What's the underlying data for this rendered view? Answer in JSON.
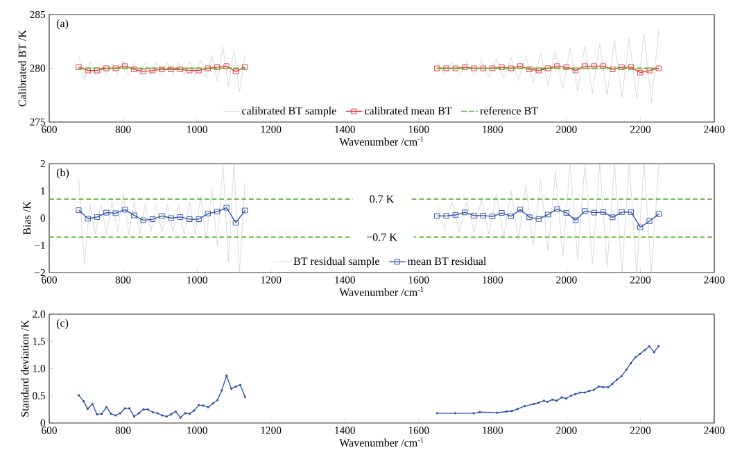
{
  "chart_data": [
    {
      "type": "line",
      "annotations": [
        "(a)"
      ],
      "xlabel": "Wavenumber /cm$^{-1}$",
      "ylabel": "Calibrated BT /K",
      "xlim": [
        600,
        2400
      ],
      "ylim": [
        275,
        285
      ],
      "xticks": [
        600,
        800,
        1000,
        1200,
        1400,
        1600,
        1800,
        2000,
        2200,
        2400
      ],
      "yticks": [
        275,
        280,
        285
      ],
      "legend": "bottom",
      "series": [
        {
          "name": "calibrated BT sample",
          "color": "#c8c8c8",
          "marker": "none",
          "line_style": "solid",
          "x": [
            680,
            695,
            710,
            725,
            740,
            755,
            770,
            785,
            800,
            815,
            830,
            845,
            860,
            875,
            890,
            905,
            920,
            935,
            950,
            965,
            980,
            995,
            1010,
            1025,
            1040,
            1055,
            1070,
            1085,
            1100,
            1115,
            1130,
            1390,
            1650,
            1670,
            1690,
            1710,
            1730,
            1750,
            1770,
            1790,
            1810,
            1830,
            1850,
            1870,
            1890,
            1910,
            1930,
            1950,
            1970,
            1990,
            2010,
            2030,
            2050,
            2070,
            2090,
            2110,
            2130,
            2150,
            2170,
            2190,
            2210,
            2230,
            2250
          ],
          "values": [
            281.1,
            278.9,
            280.6,
            279.4,
            280.5,
            279.4,
            280.5,
            279.4,
            280.7,
            279.3,
            280.5,
            279.4,
            280.5,
            279.4,
            280.5,
            279.4,
            280.5,
            279.4,
            280.5,
            279.4,
            280.6,
            279.3,
            280.8,
            279.1,
            281.2,
            278.8,
            282.0,
            278.3,
            281.7,
            277.8,
            281.2,
            null,
            280.6,
            279.4,
            280.6,
            279.3,
            280.7,
            279.3,
            280.7,
            279.2,
            280.9,
            279.1,
            281.0,
            278.9,
            281.2,
            278.7,
            281.4,
            278.4,
            281.6,
            278.1,
            281.9,
            277.9,
            282.1,
            277.7,
            282.3,
            277.5,
            282.6,
            277.3,
            282.8,
            277.2,
            283.2,
            276.8,
            283.6
          ]
        },
        {
          "name": "calibrated mean BT",
          "color": "#e8303a",
          "marker": "square",
          "line_style": "solid",
          "x": [
            680,
            705,
            730,
            755,
            780,
            805,
            830,
            855,
            880,
            905,
            930,
            955,
            980,
            1005,
            1030,
            1055,
            1080,
            1105,
            1130,
            1390,
            1650,
            1675,
            1700,
            1725,
            1750,
            1775,
            1800,
            1825,
            1850,
            1875,
            1900,
            1925,
            1950,
            1975,
            2000,
            2025,
            2050,
            2075,
            2100,
            2125,
            2150,
            2175,
            2200,
            2225,
            2250
          ],
          "values": [
            280.1,
            279.8,
            279.8,
            280.0,
            280.0,
            280.2,
            279.9,
            279.7,
            279.8,
            279.9,
            279.9,
            279.9,
            279.8,
            279.8,
            280.0,
            280.1,
            280.2,
            279.7,
            280.1,
            null,
            280.0,
            280.0,
            280.0,
            280.1,
            280.0,
            280.0,
            280.0,
            280.1,
            280.0,
            280.2,
            279.9,
            279.8,
            280.0,
            280.2,
            280.1,
            279.8,
            280.2,
            280.2,
            280.2,
            279.9,
            280.1,
            280.1,
            279.6,
            279.8,
            280.0
          ]
        },
        {
          "name": "reference BT",
          "color": "#5ab42d",
          "marker": "none",
          "line_style": "dashed",
          "x": [
            680,
            1130,
            1390,
            1650,
            2250
          ],
          "values": [
            280,
            280,
            null,
            280,
            280
          ]
        }
      ]
    },
    {
      "type": "line",
      "annotations": [
        "(b)"
      ],
      "xlabel": "Wavenumber /cm$^{-1}$",
      "ylabel": "Bias /K",
      "xlim": [
        600,
        2400
      ],
      "ylim": [
        -2,
        2
      ],
      "xticks": [
        600,
        800,
        1000,
        1200,
        1400,
        1600,
        1800,
        2000,
        2200,
        2400
      ],
      "yticks": [
        {
          "value": -2,
          "label": "−2"
        },
        {
          "value": -1,
          "label": "−1"
        },
        0,
        1,
        2
      ],
      "legend": "bottom",
      "ref_lines": [
        {
          "axis": "y",
          "value": 0.7,
          "label": "0.7 K",
          "color": "#5ab42d",
          "line_style": "dashed"
        },
        {
          "axis": "y",
          "value": -0.7,
          "label": "−0.7 K",
          "color": "#5ab42d",
          "line_style": "dashed"
        }
      ],
      "series": [
        {
          "name": "BT residual sample",
          "color": "#c8c8c8",
          "marker": "none",
          "line_style": "solid",
          "x": [
            680,
            695,
            710,
            725,
            740,
            755,
            770,
            785,
            800,
            815,
            830,
            845,
            860,
            875,
            890,
            905,
            920,
            935,
            950,
            965,
            980,
            995,
            1010,
            1025,
            1040,
            1055,
            1070,
            1085,
            1100,
            1115,
            1130,
            1390,
            1650,
            1670,
            1690,
            1710,
            1730,
            1750,
            1770,
            1790,
            1810,
            1830,
            1850,
            1870,
            1890,
            1910,
            1930,
            1950,
            1970,
            1990,
            2010,
            2030,
            2050,
            2070,
            2090,
            2110,
            2130,
            2150,
            2170,
            2190,
            2210,
            2230,
            2250
          ],
          "values": [
            1.4,
            -1.7,
            0.5,
            -0.6,
            0.5,
            -0.6,
            0.6,
            -0.5,
            0.9,
            -0.6,
            0.6,
            -0.6,
            0.5,
            -0.5,
            0.5,
            -0.5,
            0.5,
            -0.5,
            0.5,
            -0.6,
            0.6,
            -0.6,
            0.8,
            -0.8,
            1.1,
            -1.0,
            2.0,
            -1.6,
            2.0,
            -2.0,
            1.3,
            null,
            0.5,
            -0.4,
            0.6,
            -0.5,
            0.6,
            -0.5,
            0.7,
            -0.6,
            0.9,
            -0.7,
            1.0,
            -0.8,
            1.2,
            -1.0,
            1.4,
            -1.2,
            1.7,
            -1.4,
            2.0,
            -1.5,
            2.0,
            -1.7,
            2.0,
            -1.8,
            2.0,
            -2.0,
            2.0,
            -2.0,
            2.0,
            -2.0,
            2.0
          ]
        },
        {
          "name": "mean BT residual",
          "color": "#2a4fa8",
          "marker": "square",
          "line_style": "solid",
          "x": [
            680,
            705,
            730,
            755,
            780,
            805,
            830,
            855,
            880,
            905,
            930,
            955,
            980,
            1005,
            1030,
            1055,
            1080,
            1105,
            1130,
            1390,
            1650,
            1675,
            1700,
            1725,
            1750,
            1775,
            1800,
            1825,
            1850,
            1875,
            1900,
            1925,
            1950,
            1975,
            2000,
            2025,
            2050,
            2075,
            2100,
            2125,
            2150,
            2175,
            2200,
            2225,
            2250
          ],
          "values": [
            0.29,
            -0.02,
            0.04,
            0.2,
            0.18,
            0.31,
            0.1,
            -0.08,
            -0.04,
            0.08,
            0.0,
            0.04,
            -0.04,
            -0.04,
            0.17,
            0.24,
            0.38,
            -0.17,
            0.28,
            null,
            0.08,
            0.08,
            0.12,
            0.21,
            0.09,
            0.09,
            0.06,
            0.19,
            0.07,
            0.31,
            0.03,
            -0.03,
            0.13,
            0.33,
            0.19,
            -0.08,
            0.26,
            0.2,
            0.22,
            0.03,
            0.22,
            0.22,
            -0.34,
            -0.11,
            0.15
          ]
        }
      ]
    },
    {
      "type": "line",
      "annotations": [
        "(c)"
      ],
      "xlabel": "Wavenumber /cm$^{-1}$",
      "ylabel": "Standard deviation /K",
      "xlim": [
        600,
        2400
      ],
      "ylim": [
        0,
        2
      ],
      "xticks": [
        600,
        800,
        1000,
        1200,
        1400,
        1600,
        1800,
        2000,
        2200,
        2400
      ],
      "yticks": [
        0,
        {
          "value": 0.5,
          "label": "0.5"
        },
        {
          "value": 1,
          "label": "1.0"
        },
        {
          "value": 1.5,
          "label": "1.5"
        },
        {
          "value": 2,
          "label": "2.0"
        }
      ],
      "series": [
        {
          "color": "#2a4fa8",
          "marker": "circle",
          "line_style": "solid",
          "x": [
            680,
            693,
            704,
            717,
            729,
            742,
            755,
            767,
            780,
            792,
            805,
            817,
            830,
            843,
            855,
            867,
            880,
            893,
            905,
            918,
            930,
            942,
            955,
            968,
            980,
            992,
            1005,
            1017,
            1030,
            1043,
            1055,
            1067,
            1080,
            1093,
            1105,
            1117,
            1130,
            1390,
            1650,
            1699,
            1749,
            1765,
            1812,
            1837,
            1852,
            1868,
            1887,
            1912,
            1924,
            1939,
            1949,
            1962,
            1974,
            1987,
            1999,
            2012,
            2024,
            2037,
            2049,
            2062,
            2074,
            2087,
            2099,
            2113,
            2124,
            2137,
            2149,
            2162,
            2174,
            2187,
            2199,
            2212,
            2224,
            2237,
            2249
          ],
          "values": [
            0.51,
            0.4,
            0.26,
            0.35,
            0.16,
            0.17,
            0.29,
            0.17,
            0.14,
            0.18,
            0.27,
            0.27,
            0.12,
            0.18,
            0.25,
            0.25,
            0.2,
            0.18,
            0.14,
            0.12,
            0.16,
            0.21,
            0.1,
            0.18,
            0.17,
            0.23,
            0.33,
            0.32,
            0.29,
            0.36,
            0.42,
            0.6,
            0.87,
            0.63,
            0.67,
            0.7,
            0.48,
            null,
            0.18,
            0.18,
            0.18,
            0.2,
            0.19,
            0.21,
            0.22,
            0.26,
            0.31,
            0.35,
            0.37,
            0.41,
            0.39,
            0.43,
            0.41,
            0.47,
            0.45,
            0.5,
            0.53,
            0.56,
            0.56,
            0.59,
            0.61,
            0.67,
            0.66,
            0.66,
            0.72,
            0.8,
            0.86,
            0.98,
            1.1,
            1.21,
            1.27,
            1.34,
            1.41,
            1.3,
            1.41
          ]
        }
      ]
    }
  ]
}
